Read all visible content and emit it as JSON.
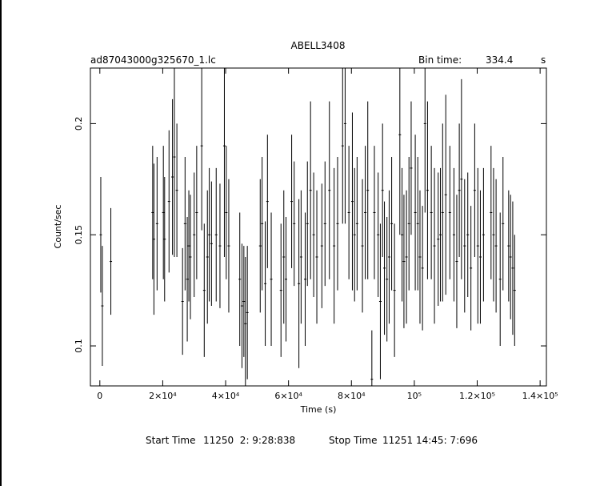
{
  "header": {
    "title": "ABELL3408",
    "filename": "ad87043000g325670_1.lc",
    "bin_time_label": "Bin time:",
    "bin_time_value": "334.4",
    "bin_time_unit": "s"
  },
  "footer": {
    "start_label": "Start Time",
    "start_value": "11250  2: 9:28:838",
    "stop_label": "Stop Time",
    "stop_value": "11251 14:45: 7:696"
  },
  "chart_data": {
    "type": "scatter",
    "title": "ABELL3408",
    "xlabel": "Time (s)",
    "ylabel": "Count/sec",
    "xlim": [
      -3000,
      142000
    ],
    "ylim": [
      0.082,
      0.225
    ],
    "xticks": [
      {
        "v": 0,
        "label": "0"
      },
      {
        "v": 20000,
        "label": "2×10⁴"
      },
      {
        "v": 40000,
        "label": "4×10⁴"
      },
      {
        "v": 60000,
        "label": "6×10⁴"
      },
      {
        "v": 80000,
        "label": "8×10⁴"
      },
      {
        "v": 100000,
        "label": "10⁵"
      },
      {
        "v": 120000,
        "label": "1.2×10⁵"
      },
      {
        "v": 140000,
        "label": "1.4×10⁵"
      }
    ],
    "yticks": [
      {
        "v": 0.1,
        "label": "0.1"
      },
      {
        "v": 0.15,
        "label": "0.15"
      },
      {
        "v": 0.2,
        "label": "0.2"
      }
    ],
    "grid": false,
    "points": [
      [
        300,
        0.15,
        0.026
      ],
      [
        800,
        0.118,
        0.027
      ],
      [
        3500,
        0.138,
        0.024
      ],
      [
        16800,
        0.16,
        0.03
      ],
      [
        17200,
        0.148,
        0.034
      ],
      [
        18200,
        0.155,
        0.03
      ],
      [
        20200,
        0.16,
        0.03
      ],
      [
        20600,
        0.148,
        0.028
      ],
      [
        22000,
        0.165,
        0.032
      ],
      [
        23100,
        0.176,
        0.035
      ],
      [
        23700,
        0.185,
        0.045
      ],
      [
        24500,
        0.17,
        0.03
      ],
      [
        26300,
        0.12,
        0.024
      ],
      [
        27100,
        0.155,
        0.03
      ],
      [
        27800,
        0.13,
        0.028
      ],
      [
        28300,
        0.145,
        0.025
      ],
      [
        28800,
        0.14,
        0.028
      ],
      [
        30000,
        0.15,
        0.028
      ],
      [
        30800,
        0.16,
        0.03
      ],
      [
        32400,
        0.19,
        0.038
      ],
      [
        33200,
        0.125,
        0.03
      ],
      [
        34200,
        0.14,
        0.03
      ],
      [
        34800,
        0.15,
        0.03
      ],
      [
        35500,
        0.146,
        0.028
      ],
      [
        37000,
        0.15,
        0.03
      ],
      [
        38200,
        0.145,
        0.028
      ],
      [
        39600,
        0.19,
        0.05
      ],
      [
        40200,
        0.16,
        0.03
      ],
      [
        41000,
        0.145,
        0.03
      ],
      [
        44500,
        0.13,
        0.03
      ],
      [
        45200,
        0.118,
        0.028
      ],
      [
        45800,
        0.12,
        0.025
      ],
      [
        46300,
        0.11,
        0.03
      ],
      [
        46900,
        0.115,
        0.03
      ],
      [
        51000,
        0.145,
        0.03
      ],
      [
        51600,
        0.155,
        0.03
      ],
      [
        52600,
        0.128,
        0.028
      ],
      [
        53300,
        0.165,
        0.03
      ],
      [
        54500,
        0.13,
        0.03
      ],
      [
        57600,
        0.125,
        0.03
      ],
      [
        58500,
        0.14,
        0.03
      ],
      [
        59200,
        0.13,
        0.028
      ],
      [
        61000,
        0.165,
        0.03
      ],
      [
        61800,
        0.155,
        0.028
      ],
      [
        63300,
        0.128,
        0.038
      ],
      [
        64000,
        0.14,
        0.03
      ],
      [
        65300,
        0.13,
        0.03
      ],
      [
        66000,
        0.155,
        0.028
      ],
      [
        67000,
        0.17,
        0.04
      ],
      [
        68000,
        0.15,
        0.028
      ],
      [
        69000,
        0.14,
        0.03
      ],
      [
        70600,
        0.145,
        0.028
      ],
      [
        71600,
        0.155,
        0.028
      ],
      [
        73000,
        0.17,
        0.04
      ],
      [
        74500,
        0.145,
        0.035
      ],
      [
        75600,
        0.155,
        0.03
      ],
      [
        77200,
        0.19,
        0.035
      ],
      [
        78000,
        0.2,
        0.045
      ],
      [
        79200,
        0.16,
        0.03
      ],
      [
        80300,
        0.165,
        0.04
      ],
      [
        81000,
        0.15,
        0.03
      ],
      [
        81800,
        0.155,
        0.03
      ],
      [
        83500,
        0.145,
        0.03
      ],
      [
        84400,
        0.16,
        0.03
      ],
      [
        85200,
        0.17,
        0.04
      ],
      [
        86500,
        0.085,
        0.022
      ],
      [
        87300,
        0.16,
        0.03
      ],
      [
        88500,
        0.15,
        0.028
      ],
      [
        89200,
        0.12,
        0.035
      ],
      [
        89900,
        0.17,
        0.03
      ],
      [
        90500,
        0.135,
        0.03
      ],
      [
        91300,
        0.13,
        0.028
      ],
      [
        92000,
        0.14,
        0.03
      ],
      [
        92800,
        0.155,
        0.03
      ],
      [
        93700,
        0.125,
        0.03
      ],
      [
        95400,
        0.195,
        0.045
      ],
      [
        96100,
        0.15,
        0.03
      ],
      [
        96700,
        0.138,
        0.03
      ],
      [
        97500,
        0.14,
        0.03
      ],
      [
        98300,
        0.155,
        0.03
      ],
      [
        99000,
        0.18,
        0.03
      ],
      [
        100300,
        0.16,
        0.035
      ],
      [
        101100,
        0.155,
        0.03
      ],
      [
        101800,
        0.14,
        0.03
      ],
      [
        102600,
        0.135,
        0.028
      ],
      [
        103400,
        0.2,
        0.04
      ],
      [
        104200,
        0.17,
        0.04
      ],
      [
        105400,
        0.16,
        0.03
      ],
      [
        106400,
        0.145,
        0.035
      ],
      [
        107600,
        0.148,
        0.03
      ],
      [
        108300,
        0.15,
        0.03
      ],
      [
        109000,
        0.16,
        0.04
      ],
      [
        110000,
        0.168,
        0.045
      ],
      [
        111300,
        0.16,
        0.03
      ],
      [
        112600,
        0.15,
        0.03
      ],
      [
        113500,
        0.138,
        0.03
      ],
      [
        114300,
        0.17,
        0.03
      ],
      [
        115000,
        0.175,
        0.045
      ],
      [
        116000,
        0.145,
        0.03
      ],
      [
        117000,
        0.15,
        0.028
      ],
      [
        118000,
        0.135,
        0.028
      ],
      [
        119200,
        0.17,
        0.03
      ],
      [
        120200,
        0.145,
        0.035
      ],
      [
        121000,
        0.14,
        0.03
      ],
      [
        122000,
        0.15,
        0.03
      ],
      [
        124400,
        0.16,
        0.03
      ],
      [
        125200,
        0.15,
        0.03
      ],
      [
        126000,
        0.145,
        0.03
      ],
      [
        127300,
        0.13,
        0.03
      ],
      [
        128200,
        0.155,
        0.03
      ],
      [
        130000,
        0.145,
        0.025
      ],
      [
        130600,
        0.14,
        0.028
      ],
      [
        131300,
        0.135,
        0.03
      ],
      [
        131900,
        0.125,
        0.025
      ]
    ]
  }
}
